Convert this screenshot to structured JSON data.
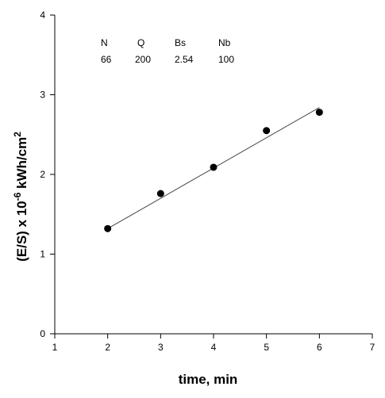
{
  "chart_data": {
    "type": "scatter",
    "title": "",
    "xlabel": "time, min",
    "ylabel_parts": {
      "base": "(E/S) x 10",
      "exp": "-6",
      "unit": " kWh/cm",
      "unit_exp": "2"
    },
    "xlim": [
      1,
      7
    ],
    "ylim": [
      0,
      4
    ],
    "xticks": [
      1,
      2,
      3,
      4,
      5,
      6,
      7
    ],
    "yticks": [
      0,
      1,
      2,
      3,
      4
    ],
    "grid": false,
    "series": [
      {
        "marker": "filled-circle",
        "x": [
          2,
          3,
          4,
          5,
          6
        ],
        "y": [
          1.32,
          1.76,
          2.09,
          2.55,
          2.78
        ]
      }
    ],
    "fit_line": {
      "x": [
        2,
        6
      ],
      "y": [
        1.32,
        2.84
      ]
    },
    "annotation_table": {
      "headers": [
        "N",
        "Q",
        "Bs",
        "Nb"
      ],
      "values": [
        "66",
        "200",
        "2.54",
        "100"
      ]
    },
    "colors": {
      "ink": "#000000",
      "fit": "#444444",
      "background": "#ffffff"
    }
  }
}
